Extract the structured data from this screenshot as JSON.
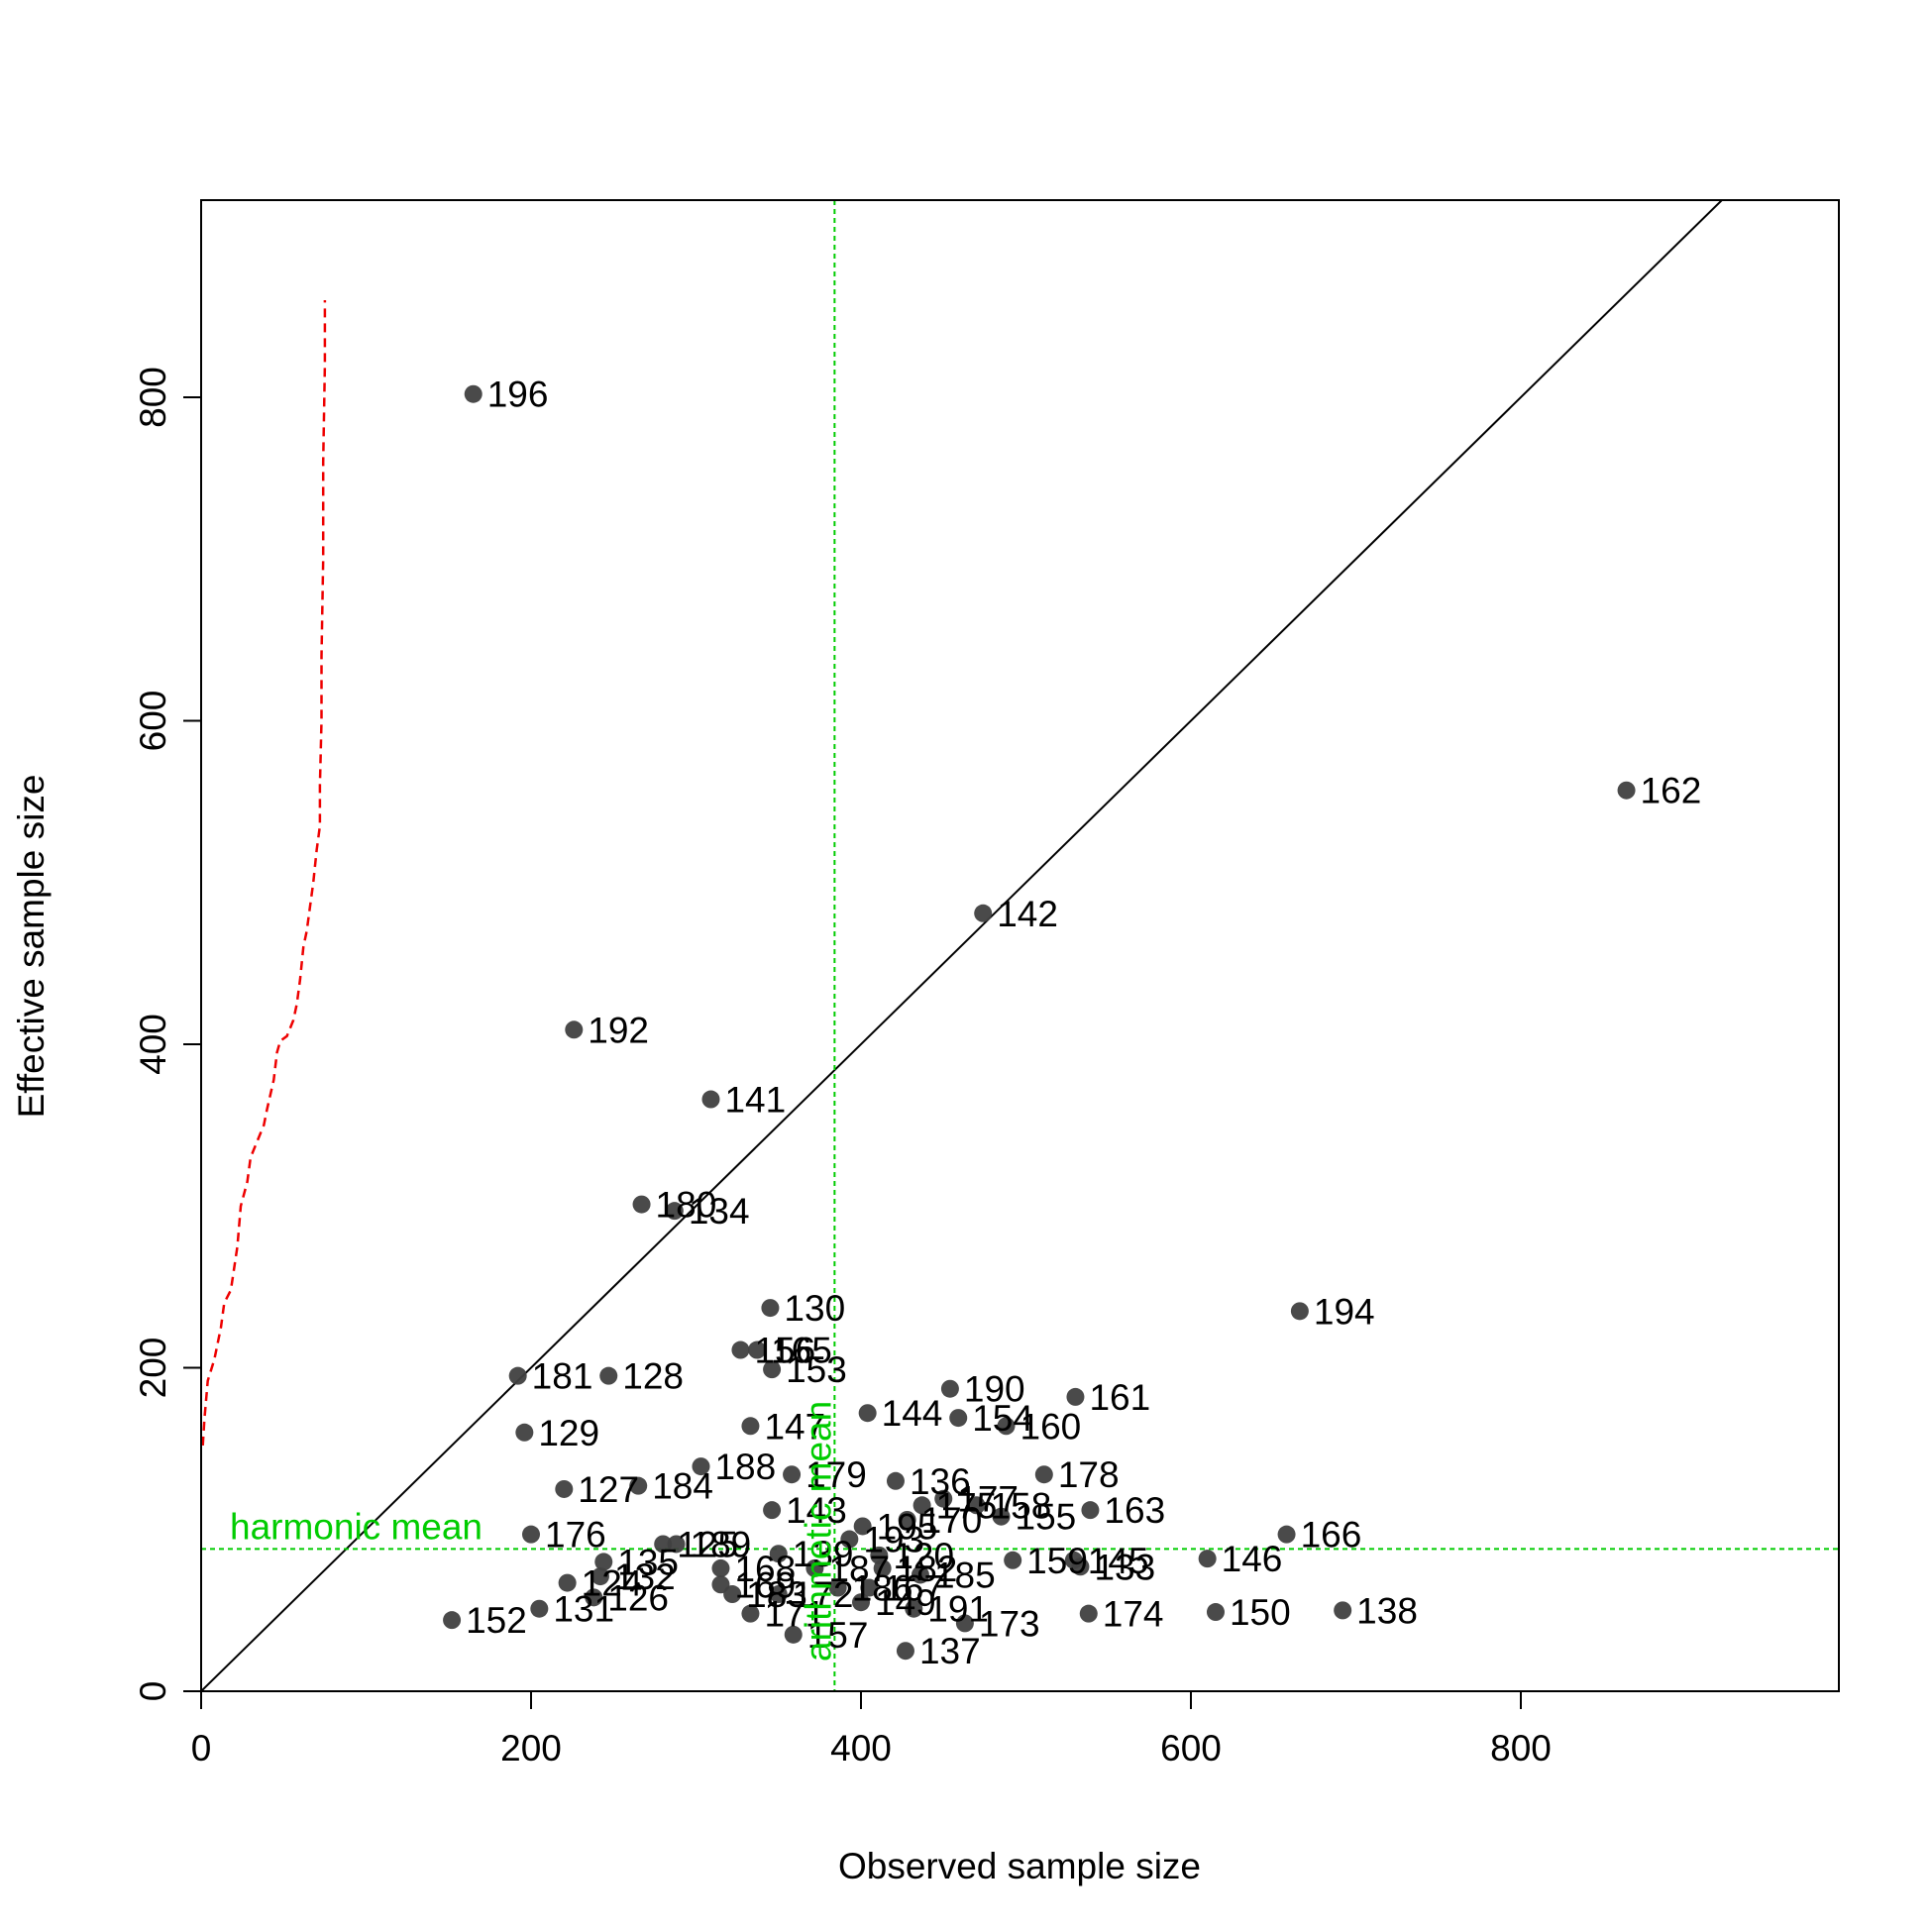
{
  "chart_data": {
    "type": "scatter",
    "xlabel": "Observed sample size",
    "ylabel": "Effective sample size",
    "xlim": [
      0,
      990
    ],
    "ylim": [
      0,
      925
    ],
    "x_ticks": [
      0,
      200,
      400,
      600,
      800
    ],
    "y_ticks": [
      0,
      200,
      400,
      600,
      800
    ],
    "grid": false,
    "point_color": "#404040",
    "reference_line": {
      "slope": 1,
      "intercept": 0,
      "color": "#000000"
    },
    "harmonic_mean": {
      "value": 88,
      "label": "harmonic mean",
      "color": "#00cc00"
    },
    "arithmetic_mean": {
      "value": 384,
      "label": "arithmetic mean",
      "color": "#00cc00"
    },
    "cumulative_curve": {
      "color": "#ee0000",
      "points": [
        [
          1,
          152
        ],
        [
          2,
          168
        ],
        [
          4,
          192
        ],
        [
          8,
          205
        ],
        [
          12,
          225
        ],
        [
          14,
          240
        ],
        [
          18,
          248
        ],
        [
          22,
          275
        ],
        [
          24,
          300
        ],
        [
          28,
          315
        ],
        [
          30,
          330
        ],
        [
          34,
          340
        ],
        [
          38,
          350
        ],
        [
          40,
          360
        ],
        [
          44,
          378
        ],
        [
          46,
          395
        ],
        [
          48,
          402
        ],
        [
          52,
          405
        ],
        [
          56,
          415
        ],
        [
          58,
          425
        ],
        [
          60,
          440
        ],
        [
          62,
          460
        ],
        [
          64,
          470
        ],
        [
          66,
          485
        ],
        [
          68,
          500
        ],
        [
          70,
          520
        ],
        [
          72,
          535
        ],
        [
          72,
          560
        ],
        [
          73,
          600
        ],
        [
          73,
          640
        ],
        [
          74,
          700
        ],
        [
          74,
          760
        ],
        [
          75,
          820
        ],
        [
          75,
          860
        ]
      ]
    },
    "points": [
      {
        "id": "196",
        "x": 165,
        "y": 802
      },
      {
        "id": "162",
        "x": 864,
        "y": 557
      },
      {
        "id": "142",
        "x": 474,
        "y": 481
      },
      {
        "id": "192",
        "x": 226,
        "y": 409
      },
      {
        "id": "141",
        "x": 309,
        "y": 366
      },
      {
        "id": "180",
        "x": 267,
        "y": 301
      },
      {
        "id": "134",
        "x": 287,
        "y": 297
      },
      {
        "id": "194",
        "x": 666,
        "y": 235
      },
      {
        "id": "130",
        "x": 345,
        "y": 237
      },
      {
        "id": "156",
        "x": 327,
        "y": 211
      },
      {
        "id": "165",
        "x": 337,
        "y": 211
      },
      {
        "id": "153",
        "x": 346,
        "y": 199
      },
      {
        "id": "181",
        "x": 192,
        "y": 195
      },
      {
        "id": "128",
        "x": 247,
        "y": 195
      },
      {
        "id": "190",
        "x": 454,
        "y": 187
      },
      {
        "id": "161",
        "x": 530,
        "y": 182
      },
      {
        "id": "144",
        "x": 404,
        "y": 172
      },
      {
        "id": "154",
        "x": 459,
        "y": 169
      },
      {
        "id": "160",
        "x": 488,
        "y": 164
      },
      {
        "id": "147",
        "x": 333,
        "y": 164
      },
      {
        "id": "129",
        "x": 196,
        "y": 160
      },
      {
        "id": "188",
        "x": 303,
        "y": 139
      },
      {
        "id": "179",
        "x": 358,
        "y": 134
      },
      {
        "id": "178",
        "x": 511,
        "y": 134
      },
      {
        "id": "136",
        "x": 421,
        "y": 130
      },
      {
        "id": "127",
        "x": 220,
        "y": 125
      },
      {
        "id": "184",
        "x": 265,
        "y": 127
      },
      {
        "id": "177",
        "x": 450,
        "y": 119
      },
      {
        "id": "158",
        "x": 470,
        "y": 115
      },
      {
        "id": "175",
        "x": 437,
        "y": 115
      },
      {
        "id": "163",
        "x": 539,
        "y": 112
      },
      {
        "id": "143",
        "x": 346,
        "y": 112
      },
      {
        "id": "155",
        "x": 485,
        "y": 108
      },
      {
        "id": "170",
        "x": 428,
        "y": 106
      },
      {
        "id": "195",
        "x": 401,
        "y": 102
      },
      {
        "id": "166",
        "x": 658,
        "y": 97
      },
      {
        "id": "176",
        "x": 200,
        "y": 97
      },
      {
        "id": "193",
        "x": 393,
        "y": 94
      },
      {
        "id": "125",
        "x": 280,
        "y": 91
      },
      {
        "id": "189",
        "x": 288,
        "y": 91
      },
      {
        "id": "139",
        "x": 350,
        "y": 85
      },
      {
        "id": "120",
        "x": 411,
        "y": 84
      },
      {
        "id": "146",
        "x": 610,
        "y": 82
      },
      {
        "id": "159",
        "x": 492,
        "y": 81
      },
      {
        "id": "145",
        "x": 529,
        "y": 81
      },
      {
        "id": "133",
        "x": 533,
        "y": 77
      },
      {
        "id": "135",
        "x": 244,
        "y": 80
      },
      {
        "id": "168",
        "x": 315,
        "y": 76
      },
      {
        "id": "187",
        "x": 372,
        "y": 76
      },
      {
        "id": "182",
        "x": 413,
        "y": 76
      },
      {
        "id": "185",
        "x": 436,
        "y": 72
      },
      {
        "id": "132",
        "x": 242,
        "y": 71
      },
      {
        "id": "124",
        "x": 222,
        "y": 67
      },
      {
        "id": "169",
        "x": 315,
        "y": 66
      },
      {
        "id": "186",
        "x": 386,
        "y": 64
      },
      {
        "id": "167",
        "x": 405,
        "y": 64
      },
      {
        "id": "172",
        "x": 350,
        "y": 60
      },
      {
        "id": "183",
        "x": 322,
        "y": 60
      },
      {
        "id": "126",
        "x": 238,
        "y": 58
      },
      {
        "id": "149",
        "x": 400,
        "y": 55
      },
      {
        "id": "191",
        "x": 432,
        "y": 51
      },
      {
        "id": "131",
        "x": 205,
        "y": 51
      },
      {
        "id": "138",
        "x": 692,
        "y": 50
      },
      {
        "id": "150",
        "x": 615,
        "y": 49
      },
      {
        "id": "174",
        "x": 538,
        "y": 48
      },
      {
        "id": "171",
        "x": 333,
        "y": 48
      },
      {
        "id": "173",
        "x": 463,
        "y": 42
      },
      {
        "id": "152",
        "x": 152,
        "y": 44
      },
      {
        "id": "157",
        "x": 359,
        "y": 35
      },
      {
        "id": "137",
        "x": 427,
        "y": 25
      }
    ]
  }
}
